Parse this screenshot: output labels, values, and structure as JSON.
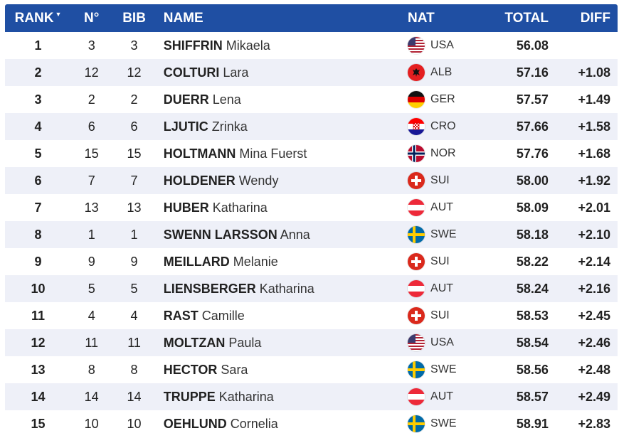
{
  "header": {
    "rank": "RANK",
    "no": "N°",
    "bib": "BIB",
    "name": "NAME",
    "nat": "NAT",
    "total": "TOTAL",
    "diff": "DIFF"
  },
  "colors": {
    "header_bg": "#1f4fa3",
    "row_alt": "#eef0f8"
  },
  "rows": [
    {
      "rank": "1",
      "no": "3",
      "bib": "3",
      "last": "SHIFFRIN",
      "first": "Mikaela",
      "nat": "USA",
      "flag": "usa-flag-icon",
      "total": "56.08",
      "diff": ""
    },
    {
      "rank": "2",
      "no": "12",
      "bib": "12",
      "last": "COLTURI",
      "first": "Lara",
      "nat": "ALB",
      "flag": "alb-flag-icon",
      "total": "57.16",
      "diff": "+1.08"
    },
    {
      "rank": "3",
      "no": "2",
      "bib": "2",
      "last": "DUERR",
      "first": "Lena",
      "nat": "GER",
      "flag": "ger-flag-icon",
      "total": "57.57",
      "diff": "+1.49"
    },
    {
      "rank": "4",
      "no": "6",
      "bib": "6",
      "last": "LJUTIC",
      "first": "Zrinka",
      "nat": "CRO",
      "flag": "cro-flag-icon",
      "total": "57.66",
      "diff": "+1.58"
    },
    {
      "rank": "5",
      "no": "15",
      "bib": "15",
      "last": "HOLTMANN",
      "first": "Mina Fuerst",
      "nat": "NOR",
      "flag": "nor-flag-icon",
      "total": "57.76",
      "diff": "+1.68"
    },
    {
      "rank": "6",
      "no": "7",
      "bib": "7",
      "last": "HOLDENER",
      "first": "Wendy",
      "nat": "SUI",
      "flag": "sui-flag-icon",
      "total": "58.00",
      "diff": "+1.92"
    },
    {
      "rank": "7",
      "no": "13",
      "bib": "13",
      "last": "HUBER",
      "first": "Katharina",
      "nat": "AUT",
      "flag": "aut-flag-icon",
      "total": "58.09",
      "diff": "+2.01"
    },
    {
      "rank": "8",
      "no": "1",
      "bib": "1",
      "last": "SWENN LARSSON",
      "first": "Anna",
      "nat": "SWE",
      "flag": "swe-flag-icon",
      "total": "58.18",
      "diff": "+2.10"
    },
    {
      "rank": "9",
      "no": "9",
      "bib": "9",
      "last": "MEILLARD",
      "first": "Melanie",
      "nat": "SUI",
      "flag": "sui-flag-icon",
      "total": "58.22",
      "diff": "+2.14"
    },
    {
      "rank": "10",
      "no": "5",
      "bib": "5",
      "last": "LIENSBERGER",
      "first": "Katharina",
      "nat": "AUT",
      "flag": "aut-flag-icon",
      "total": "58.24",
      "diff": "+2.16"
    },
    {
      "rank": "11",
      "no": "4",
      "bib": "4",
      "last": "RAST",
      "first": "Camille",
      "nat": "SUI",
      "flag": "sui-flag-icon",
      "total": "58.53",
      "diff": "+2.45"
    },
    {
      "rank": "12",
      "no": "11",
      "bib": "11",
      "last": "MOLTZAN",
      "first": "Paula",
      "nat": "USA",
      "flag": "usa-flag-icon",
      "total": "58.54",
      "diff": "+2.46"
    },
    {
      "rank": "13",
      "no": "8",
      "bib": "8",
      "last": "HECTOR",
      "first": "Sara",
      "nat": "SWE",
      "flag": "swe-flag-icon",
      "total": "58.56",
      "diff": "+2.48"
    },
    {
      "rank": "14",
      "no": "14",
      "bib": "14",
      "last": "TRUPPE",
      "first": "Katharina",
      "nat": "AUT",
      "flag": "aut-flag-icon",
      "total": "58.57",
      "diff": "+2.49"
    },
    {
      "rank": "15",
      "no": "10",
      "bib": "10",
      "last": "OEHLUND",
      "first": "Cornelia",
      "nat": "SWE",
      "flag": "swe-flag-icon",
      "total": "58.91",
      "diff": "+2.83"
    }
  ]
}
